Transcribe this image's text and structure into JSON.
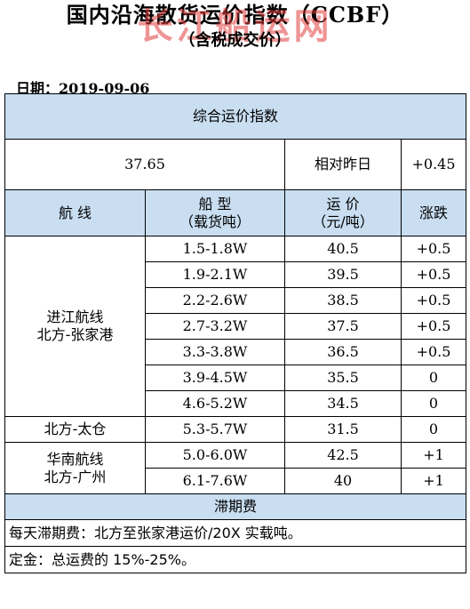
{
  "header": {
    "title": "国内沿海散货运价指数（CCBF）",
    "subtitle": "（含税成交价）",
    "watermark": "长江船运网",
    "date_label": "日期：",
    "date_value": "2019-09-06"
  },
  "index": {
    "section_title": "综合运价指数",
    "value": "37.65",
    "compare_label": "相对昨日",
    "change": "+0.45"
  },
  "columns": {
    "route": "航 线",
    "ship_type_line1": "船 型",
    "ship_type_line2": "（载货吨）",
    "price_line1": "运 价",
    "price_line2": "（元/吨）",
    "change": "涨跌"
  },
  "groups": [
    {
      "route_line1": "进江航线",
      "route_line2": "北方-张家港",
      "rows": [
        {
          "ship": "1.5-1.8W",
          "price": "40.5",
          "change": "+0.5"
        },
        {
          "ship": "1.9-2.1W",
          "price": "39.5",
          "change": "+0.5"
        },
        {
          "ship": "2.2-2.6W",
          "price": "38.5",
          "change": "+0.5"
        },
        {
          "ship": "2.7-3.2W",
          "price": "37.5",
          "change": "+0.5"
        },
        {
          "ship": "3.3-3.8W",
          "price": "36.5",
          "change": "+0.5"
        },
        {
          "ship": "3.9-4.5W",
          "price": "35.5",
          "change": "0"
        },
        {
          "ship": "4.6-5.2W",
          "price": "34.5",
          "change": "0"
        }
      ]
    },
    {
      "route_line1": "北方-太仓",
      "route_line2": "",
      "rows": [
        {
          "ship": "5.3-5.7W",
          "price": "31.5",
          "change": "0"
        }
      ]
    },
    {
      "route_line1": "华南航线",
      "route_line2": "北方-广州",
      "rows": [
        {
          "ship": "5.0-6.0W",
          "price": "42.5",
          "change": "+1"
        },
        {
          "ship": "6.1-7.6W",
          "price": "40",
          "change": "+1"
        }
      ]
    }
  ],
  "demurrage": {
    "section_title": "滞期费",
    "note1": "每天滞期费：北方至张家港运价/20X 实载吨。",
    "note2": "定金：总运费的 15%-25%。"
  }
}
